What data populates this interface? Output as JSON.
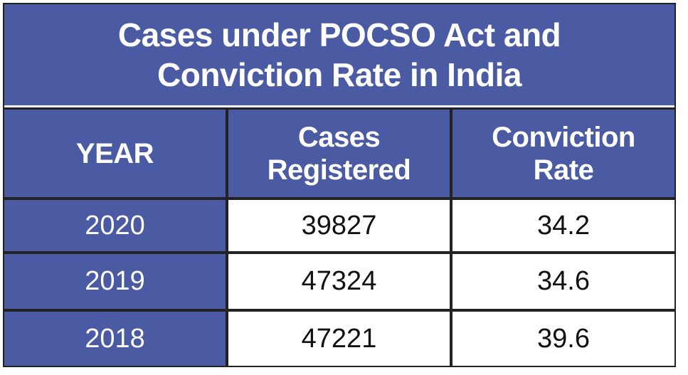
{
  "chart_data": {
    "type": "table",
    "title": "Cases under POCSO Act and Conviction Rate in India",
    "columns": [
      "YEAR",
      "Cases Registered",
      "Conviction Rate"
    ],
    "rows": [
      {
        "year": "2020",
        "cases": "39827",
        "rate": "34.2"
      },
      {
        "year": "2019",
        "cases": "47324",
        "rate": "34.6"
      },
      {
        "year": "2018",
        "cases": "47221",
        "rate": "39.6"
      }
    ]
  },
  "colors": {
    "header_bg": "#4a5aa3",
    "header_text": "#ffffff",
    "body_bg": "#ffffff",
    "border": "#222222"
  }
}
